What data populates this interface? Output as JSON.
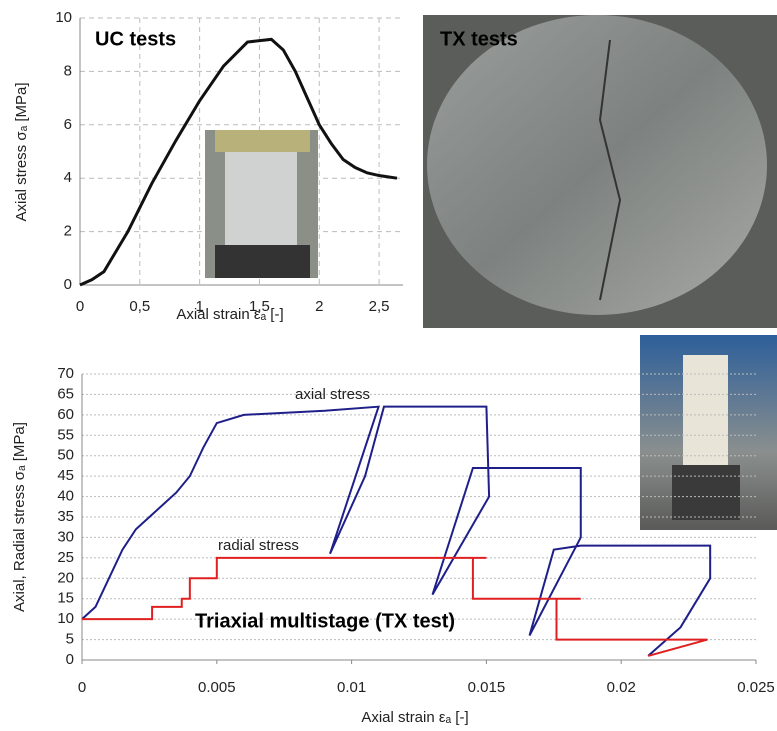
{
  "chart_data": [
    {
      "type": "line",
      "title": "UC tests",
      "x_label": "Axial strain εₐ [-]",
      "y_label": "Axial stress σₐ [MPa]",
      "x": [
        0,
        0.1,
        0.2,
        0.4,
        0.6,
        0.8,
        1,
        1.2,
        1.4,
        1.6,
        1.7,
        1.8,
        1.9,
        2.0,
        2.1,
        2.2,
        2.3,
        2.4,
        2.5,
        2.65
      ],
      "values": [
        0,
        0.2,
        0.5,
        2,
        3.8,
        5.4,
        6.9,
        8.2,
        9.1,
        9.2,
        8.8,
        8,
        7,
        6,
        5.3,
        4.7,
        4.4,
        4.2,
        4.1,
        4.0
      ],
      "color": "#111111",
      "xlim": [
        0,
        2.7
      ],
      "ylim": [
        0,
        10
      ],
      "xticks": [
        0,
        {
          "value": 0.5,
          "label": "0,5"
        },
        1,
        {
          "value": 1.5,
          "label": "1,5"
        },
        2,
        {
          "value": 2.5,
          "label": "2,5"
        }
      ],
      "yticks": [
        0,
        2,
        4,
        6,
        8,
        10
      ],
      "grid": true
    },
    {
      "type": "line",
      "x_label": "Axial strain εₐ [-]",
      "y_label": "Axial, Radial stress σₐ [MPa]",
      "annotations": [
        "Triaxial multistage (TX test)"
      ],
      "series": [
        {
          "name": "axial stress",
          "color": "#1f1f8a",
          "x": [
            0,
            0.0005,
            0.001,
            0.0015,
            0.002,
            0.0025,
            0.003,
            0.0035,
            0.004,
            0.0045,
            0.005,
            0.006,
            0.009,
            0.011,
            0.0092,
            0.0105,
            0.0112,
            0.015,
            0.0151,
            0.013,
            0.0145,
            0.0185,
            0.0185,
            0.0166,
            0.0175,
            0.0185,
            0.0233,
            0.0233,
            0.0222,
            0.021
          ],
          "values": [
            10,
            13,
            20,
            27,
            32,
            35,
            38,
            41,
            45,
            52,
            58,
            60,
            61,
            62,
            26,
            45,
            62,
            62,
            40,
            16,
            47,
            47,
            30,
            6,
            27,
            28,
            28,
            20,
            8,
            1
          ]
        },
        {
          "name": "radial stress",
          "color": "#e02020",
          "x": [
            0,
            0.0026,
            0.0026,
            0.0037,
            0.0037,
            0.004,
            0.004,
            0.005,
            0.005,
            0.015,
            0.0145,
            0.0145,
            0.0185,
            0.0176,
            0.0176,
            0.0232,
            0.021
          ],
          "values": [
            10,
            10,
            13,
            13,
            15,
            15,
            20,
            20,
            25,
            25,
            25,
            15,
            15,
            15,
            5,
            5,
            1
          ]
        }
      ],
      "xlim": [
        0,
        0.025
      ],
      "ylim": [
        0,
        70
      ],
      "xticks": [
        0,
        0.005,
        0.01,
        0.015,
        0.02,
        0.025
      ],
      "yticks": [
        0,
        5,
        10,
        15,
        20,
        25,
        30,
        35,
        40,
        45,
        50,
        55,
        60,
        65,
        70
      ],
      "grid": true
    }
  ],
  "photo": {
    "label": "TX tests"
  }
}
